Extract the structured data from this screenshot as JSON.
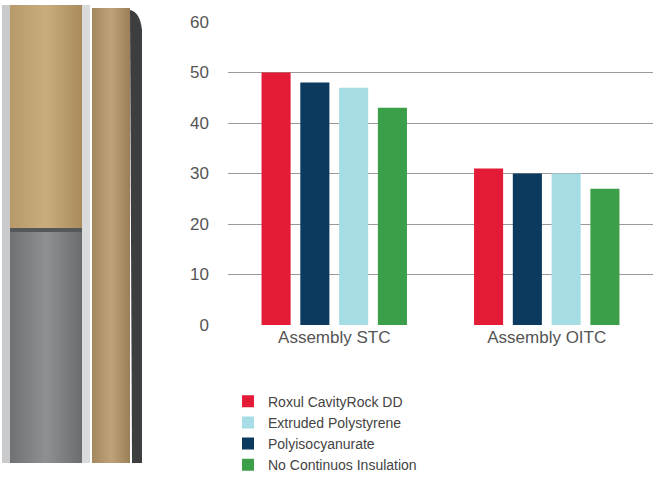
{
  "chart_data": {
    "type": "bar",
    "categories": [
      "Assembly STC",
      "Assembly OITC"
    ],
    "series": [
      {
        "name": "Roxul CavityRock DD",
        "color": "#e31b37",
        "values": [
          50,
          31
        ]
      },
      {
        "name": "Polyisocyanurate",
        "color": "#0b3a5e",
        "values": [
          48,
          30
        ]
      },
      {
        "name": "Extruded Polystyrene",
        "color": "#a6dde5",
        "values": [
          47,
          30
        ]
      },
      {
        "name": "No Continuos Insulation",
        "color": "#3b9e48",
        "values": [
          43,
          27
        ]
      }
    ],
    "ylim": [
      0,
      60
    ],
    "yticks": [
      0,
      10,
      20,
      30,
      40,
      50,
      60
    ],
    "grid": true,
    "legend": "bottom"
  }
}
